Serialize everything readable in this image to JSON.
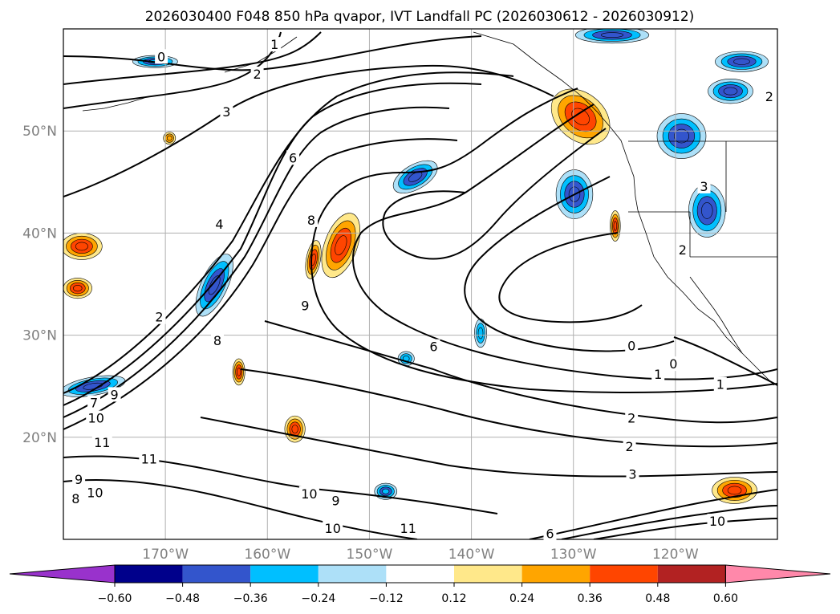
{
  "chart_data": {
    "type": "contour-map",
    "title": "2026030400 F048 850 hPa qvapor, IVT Landfall PC (2026030612 - 2026030912)",
    "lon_range": [
      -180,
      -110
    ],
    "lat_range": [
      10,
      60
    ],
    "lat_ticks": [
      {
        "value": 20,
        "label": "20°N"
      },
      {
        "value": 30,
        "label": "30°N"
      },
      {
        "value": 40,
        "label": "40°N"
      },
      {
        "value": 50,
        "label": "50°N"
      }
    ],
    "lon_ticks": [
      {
        "value": -170,
        "label": "170°W"
      },
      {
        "value": -160,
        "label": "160°W"
      },
      {
        "value": -150,
        "label": "150°W"
      },
      {
        "value": -140,
        "label": "140°W"
      },
      {
        "value": -130,
        "label": "130°W"
      },
      {
        "value": -120,
        "label": "120°W"
      }
    ],
    "colorbar": {
      "extend": "both",
      "levels": [
        "−0.60",
        "−0.48",
        "−0.36",
        "−0.24",
        "−0.12",
        "0.12",
        "0.24",
        "0.36",
        "0.48",
        "0.60"
      ],
      "colors": [
        "#9932CC",
        "#00008B",
        "#3355CC",
        "#00BFFF",
        "#ADE0F8",
        "#FFFFFF",
        "#FFE88A",
        "#FFA500",
        "#FF4500",
        "#B22222",
        "#FF88AA"
      ]
    },
    "contour_labels": [
      {
        "text": "0",
        "lon": -170.4,
        "lat": 57.3
      },
      {
        "text": "1",
        "lon": -159.3,
        "lat": 58.5
      },
      {
        "text": "2",
        "lon": -161,
        "lat": 55.6
      },
      {
        "text": "3",
        "lon": -164,
        "lat": 51.9
      },
      {
        "text": "6",
        "lon": -157.5,
        "lat": 47.4
      },
      {
        "text": "4",
        "lon": -164.7,
        "lat": 40.9
      },
      {
        "text": "8",
        "lon": -155.7,
        "lat": 41.3
      },
      {
        "text": "9",
        "lon": -156.3,
        "lat": 32.9
      },
      {
        "text": "8",
        "lon": -164.9,
        "lat": 29.5
      },
      {
        "text": "2",
        "lon": -170.6,
        "lat": 31.8
      },
      {
        "text": "7",
        "lon": -177,
        "lat": 23.4
      },
      {
        "text": "9",
        "lon": -175,
        "lat": 24.2
      },
      {
        "text": "10",
        "lon": -176.8,
        "lat": 21.9
      },
      {
        "text": "11",
        "lon": -176.2,
        "lat": 19.5
      },
      {
        "text": "11",
        "lon": -171.6,
        "lat": 17.9
      },
      {
        "text": "9",
        "lon": -178.5,
        "lat": 15.9
      },
      {
        "text": "10",
        "lon": -176.9,
        "lat": 14.6
      },
      {
        "text": "8",
        "lon": -178.8,
        "lat": 14
      },
      {
        "text": "6",
        "lon": -143.7,
        "lat": 28.9
      },
      {
        "text": "10",
        "lon": -155.9,
        "lat": 14.5
      },
      {
        "text": "9",
        "lon": -153.3,
        "lat": 13.8
      },
      {
        "text": "10",
        "lon": -153.6,
        "lat": 11.1
      },
      {
        "text": "11",
        "lon": -146.2,
        "lat": 11.1
      },
      {
        "text": "0",
        "lon": -124.3,
        "lat": 29
      },
      {
        "text": "0",
        "lon": -120.2,
        "lat": 27.2
      },
      {
        "text": "1",
        "lon": -121.7,
        "lat": 26.2
      },
      {
        "text": "1",
        "lon": -115.6,
        "lat": 25.2
      },
      {
        "text": "2",
        "lon": -124.3,
        "lat": 21.9
      },
      {
        "text": "2",
        "lon": -124.5,
        "lat": 19.1
      },
      {
        "text": "3",
        "lon": -124.2,
        "lat": 16.4
      },
      {
        "text": "10",
        "lon": -115.9,
        "lat": 11.8
      },
      {
        "text": "6",
        "lon": -132.3,
        "lat": 10.6
      },
      {
        "text": "2",
        "lon": -110.8,
        "lat": 53.4
      },
      {
        "text": "3",
        "lon": -117.2,
        "lat": 44.6
      },
      {
        "text": "2",
        "lon": -119.3,
        "lat": 38.4
      }
    ],
    "anomaly_regions": [
      {
        "name": "gulf-of-alaska-positive",
        "lon": -129.3,
        "lat": 51.4,
        "rx": 3.2,
        "ry": 2.3,
        "rot": 40,
        "level": 0.42
      },
      {
        "name": "central-positive",
        "lon": -152.8,
        "lat": 38.8,
        "rx": 1.6,
        "ry": 3.3,
        "rot": 20,
        "level": 0.4
      },
      {
        "name": "central-positive-2",
        "lon": -155.5,
        "lat": 37.4,
        "rx": 0.7,
        "ry": 1.9,
        "rot": 10,
        "level": 0.36
      },
      {
        "name": "west-positive-1",
        "lon": -178.2,
        "lat": 38.7,
        "rx": 2.0,
        "ry": 1.3,
        "rot": 0,
        "level": 0.38
      },
      {
        "name": "west-positive-2",
        "lon": -178.6,
        "lat": 34.6,
        "rx": 1.4,
        "ry": 1.0,
        "rot": 0,
        "level": 0.4
      },
      {
        "name": "se-positive",
        "lon": -114.2,
        "lat": 14.8,
        "rx": 2.2,
        "ry": 1.3,
        "rot": 0,
        "level": 0.44
      },
      {
        "name": "pac-positive-1",
        "lon": -162.8,
        "lat": 26.4,
        "rx": 0.6,
        "ry": 1.3,
        "rot": 0,
        "level": 0.36
      },
      {
        "name": "pac-positive-2",
        "lon": -157.3,
        "lat": 20.8,
        "rx": 1.0,
        "ry": 1.3,
        "rot": 0,
        "level": 0.4
      },
      {
        "name": "pac-positive-3",
        "lon": -125.9,
        "lat": 40.7,
        "rx": 0.5,
        "ry": 1.5,
        "rot": 0,
        "level": 0.36
      },
      {
        "name": "pac-positive-4",
        "lon": -169.6,
        "lat": 49.3,
        "rx": 0.6,
        "ry": 0.6,
        "rot": 0,
        "level": 0.3
      },
      {
        "name": "subtropical-negative",
        "lon": -145.5,
        "lat": 45.5,
        "rx": 2.4,
        "ry": 1.2,
        "rot": -30,
        "level": -0.4
      },
      {
        "name": "coast-negative",
        "lon": -129.9,
        "lat": 43.8,
        "rx": 1.8,
        "ry": 2.4,
        "rot": 0,
        "level": -0.44
      },
      {
        "name": "west-negative-1",
        "lon": -165.2,
        "lat": 34.9,
        "rx": 1.3,
        "ry": 3.3,
        "rot": 25,
        "level": -0.4
      },
      {
        "name": "west-negative-2",
        "lon": -177.1,
        "lat": 25,
        "rx": 3.2,
        "ry": 0.9,
        "rot": -10,
        "level": -0.42
      },
      {
        "name": "na-negative-1",
        "lon": -119.4,
        "lat": 49.5,
        "rx": 2.4,
        "ry": 2.2,
        "rot": 0,
        "level": -0.46
      },
      {
        "name": "na-negative-2",
        "lon": -116.9,
        "lat": 42.2,
        "rx": 1.8,
        "ry": 2.6,
        "rot": 0,
        "level": -0.42
      },
      {
        "name": "na-negative-3",
        "lon": -114.6,
        "lat": 53.9,
        "rx": 2.2,
        "ry": 1.2,
        "rot": 0,
        "level": -0.4
      },
      {
        "name": "north-negative",
        "lon": -126.2,
        "lat": 59.4,
        "rx": 3.6,
        "ry": 0.8,
        "rot": 0,
        "level": -0.4
      },
      {
        "name": "aleutian-negative",
        "lon": -171,
        "lat": 56.8,
        "rx": 2.2,
        "ry": 0.6,
        "rot": 0,
        "level": -0.36
      },
      {
        "name": "trade-negative-1",
        "lon": -139.1,
        "lat": 30.2,
        "rx": 0.6,
        "ry": 1.4,
        "rot": 0,
        "level": -0.3
      },
      {
        "name": "trade-negative-2",
        "lon": -146.4,
        "lat": 27.7,
        "rx": 0.8,
        "ry": 0.7,
        "rot": 0,
        "level": -0.3
      },
      {
        "name": "trade-negative-3",
        "lon": -148.4,
        "lat": 14.7,
        "rx": 1.1,
        "ry": 0.8,
        "rot": 0,
        "level": -0.36
      },
      {
        "name": "north-negative-2",
        "lon": -113.5,
        "lat": 56.8,
        "rx": 2.6,
        "ry": 1.0,
        "rot": 0,
        "level": -0.42
      }
    ]
  }
}
